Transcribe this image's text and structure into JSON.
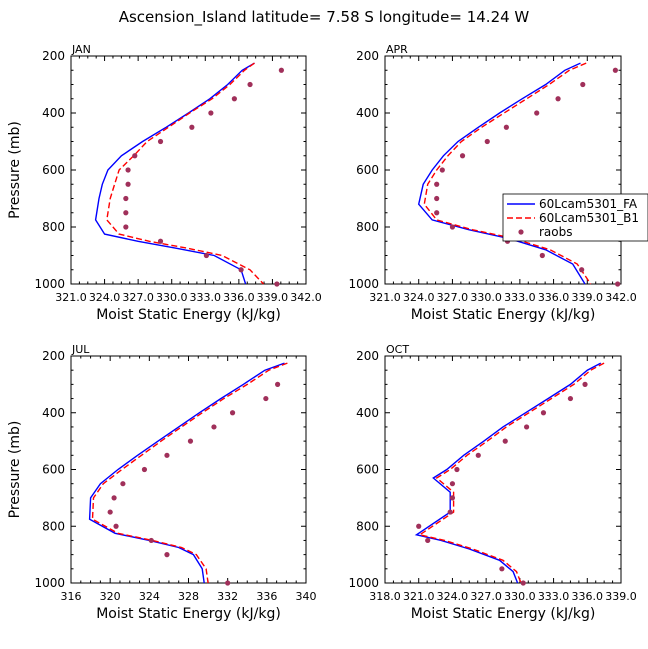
{
  "figure_title": "Ascension_Island   latitude= 7.58 S longitude= 14.24 W",
  "legend": {
    "placement": "right of APR panel",
    "entries": [
      {
        "label": "60Lcam5301_FA",
        "color": "#0000ff",
        "style": "solid"
      },
      {
        "label": "60Lcam5301_B1",
        "color": "#ff0000",
        "style": "dashed"
      },
      {
        "label": "raobs",
        "color": "#a0305a",
        "style": "dots"
      }
    ]
  },
  "chart_data": [
    {
      "type": "line",
      "panel_label": "JAN",
      "xlabel": "Moist Static Energy (kJ/kg)",
      "ylabel": "Pressure (mb)",
      "xlim": [
        321.0,
        342.0
      ],
      "xticks": [
        321.0,
        324.0,
        327.0,
        330.0,
        333.0,
        336.0,
        339.0,
        342.0
      ],
      "xtick_labels": [
        "321.0",
        "324.0",
        "327.0",
        "330.0",
        "333.0",
        "336.0",
        "339.0",
        "342.0"
      ],
      "ylim": [
        1000,
        200
      ],
      "yticks": [
        200,
        400,
        600,
        800,
        1000
      ],
      "series": [
        {
          "name": "60Lcam5301_FA",
          "points": [
            [
              337.4,
              225
            ],
            [
              336.3,
              250
            ],
            [
              335.0,
              300
            ],
            [
              333.4,
              350
            ],
            [
              331.5,
              400
            ],
            [
              329.5,
              450
            ],
            [
              327.4,
              500
            ],
            [
              325.5,
              550
            ],
            [
              324.3,
              600
            ],
            [
              323.8,
              650
            ],
            [
              323.5,
              700
            ],
            [
              323.2,
              775
            ],
            [
              324.0,
              825
            ],
            [
              327.0,
              850
            ],
            [
              330.5,
              875
            ],
            [
              333.8,
              900
            ],
            [
              336.2,
              950
            ],
            [
              336.6,
              1000
            ]
          ]
        },
        {
          "name": "60Lcam5301_B1",
          "points": [
            [
              337.4,
              225
            ],
            [
              336.5,
              250
            ],
            [
              335.2,
              300
            ],
            [
              333.6,
              350
            ],
            [
              331.6,
              400
            ],
            [
              329.7,
              450
            ],
            [
              327.8,
              500
            ],
            [
              326.6,
              550
            ],
            [
              325.3,
              600
            ],
            [
              324.9,
              650
            ],
            [
              324.5,
              700
            ],
            [
              324.2,
              775
            ],
            [
              325.3,
              825
            ],
            [
              328.0,
              850
            ],
            [
              331.5,
              875
            ],
            [
              334.5,
              900
            ],
            [
              337.0,
              950
            ],
            [
              338.2,
              1000
            ]
          ]
        }
      ],
      "points_series": {
        "name": "raobs",
        "points": [
          [
            339.8,
            250
          ],
          [
            337.0,
            300
          ],
          [
            335.6,
            350
          ],
          [
            333.5,
            400
          ],
          [
            331.8,
            450
          ],
          [
            329.0,
            500
          ],
          [
            326.7,
            550
          ],
          [
            326.1,
            600
          ],
          [
            326.1,
            650
          ],
          [
            325.9,
            700
          ],
          [
            325.9,
            750
          ],
          [
            325.9,
            800
          ],
          [
            329.0,
            850
          ],
          [
            333.1,
            900
          ],
          [
            336.2,
            950
          ],
          [
            339.4,
            1000
          ]
        ]
      }
    },
    {
      "type": "line",
      "panel_label": "APR",
      "xlabel": "Moist Static Energy (kJ/kg)",
      "ylabel": "",
      "xlim": [
        321.0,
        342.0
      ],
      "xticks": [
        321.0,
        324.0,
        327.0,
        330.0,
        333.0,
        336.0,
        339.0,
        342.0
      ],
      "xtick_labels": [
        "321.0",
        "324.0",
        "327.0",
        "330.0",
        "333.0",
        "336.0",
        "339.0",
        "342.0"
      ],
      "ylim": [
        1000,
        200
      ],
      "yticks": [
        200,
        400,
        600,
        800,
        1000
      ],
      "series": [
        {
          "name": "60Lcam5301_FA",
          "points": [
            [
              338.4,
              225
            ],
            [
              337.0,
              250
            ],
            [
              335.3,
              300
            ],
            [
              333.2,
              350
            ],
            [
              331.2,
              400
            ],
            [
              329.3,
              450
            ],
            [
              327.5,
              500
            ],
            [
              326.2,
              550
            ],
            [
              325.2,
              600
            ],
            [
              324.4,
              650
            ],
            [
              324.0,
              720
            ],
            [
              325.2,
              775
            ],
            [
              328.5,
              810
            ],
            [
              332.0,
              840
            ],
            [
              335.3,
              880
            ],
            [
              337.7,
              930
            ],
            [
              338.8,
              1000
            ]
          ]
        },
        {
          "name": "60Lcam5301_B1",
          "points": [
            [
              338.9,
              225
            ],
            [
              337.4,
              250
            ],
            [
              335.6,
              300
            ],
            [
              333.6,
              350
            ],
            [
              331.6,
              400
            ],
            [
              329.6,
              450
            ],
            [
              327.8,
              500
            ],
            [
              326.6,
              550
            ],
            [
              325.6,
              600
            ],
            [
              324.8,
              650
            ],
            [
              324.5,
              720
            ],
            [
              325.6,
              775
            ],
            [
              328.8,
              810
            ],
            [
              332.4,
              840
            ],
            [
              335.7,
              880
            ],
            [
              338.1,
              930
            ],
            [
              339.3,
              1000
            ]
          ]
        }
      ],
      "points_series": {
        "name": "raobs",
        "points": [
          [
            341.5,
            250
          ],
          [
            338.6,
            300
          ],
          [
            336.4,
            350
          ],
          [
            334.5,
            400
          ],
          [
            331.8,
            450
          ],
          [
            330.1,
            500
          ],
          [
            327.9,
            550
          ],
          [
            326.1,
            600
          ],
          [
            325.6,
            650
          ],
          [
            325.6,
            700
          ],
          [
            325.6,
            750
          ],
          [
            327.0,
            800
          ],
          [
            331.9,
            850
          ],
          [
            335.0,
            900
          ],
          [
            338.5,
            950
          ],
          [
            341.7,
            1000
          ]
        ]
      }
    },
    {
      "type": "line",
      "panel_label": "JUL",
      "xlabel": "Moist Static Energy (kJ/kg)",
      "ylabel": "Pressure (mb)",
      "xlim": [
        316,
        340
      ],
      "xticks": [
        316,
        320,
        324,
        328,
        332,
        336,
        340
      ],
      "xtick_labels": [
        "316",
        "320",
        "324",
        "328",
        "332",
        "336",
        "340"
      ],
      "ylim": [
        1000,
        200
      ],
      "yticks": [
        200,
        400,
        600,
        800,
        1000
      ],
      "series": [
        {
          "name": "60Lcam5301_FA",
          "points": [
            [
              337.8,
              225
            ],
            [
              335.8,
              250
            ],
            [
              333.6,
              300
            ],
            [
              331.3,
              350
            ],
            [
              329.1,
              400
            ],
            [
              327.0,
              450
            ],
            [
              324.9,
              500
            ],
            [
              322.8,
              550
            ],
            [
              320.8,
              600
            ],
            [
              319.0,
              650
            ],
            [
              318.0,
              700
            ],
            [
              317.9,
              775
            ],
            [
              320.5,
              825
            ],
            [
              324.0,
              850
            ],
            [
              327.0,
              875
            ],
            [
              328.5,
              900
            ],
            [
              329.4,
              950
            ],
            [
              329.6,
              1000
            ]
          ]
        },
        {
          "name": "60Lcam5301_B1",
          "points": [
            [
              338.1,
              225
            ],
            [
              336.2,
              250
            ],
            [
              334.0,
              300
            ],
            [
              331.6,
              350
            ],
            [
              329.4,
              400
            ],
            [
              327.3,
              450
            ],
            [
              325.2,
              500
            ],
            [
              323.2,
              550
            ],
            [
              321.2,
              600
            ],
            [
              319.3,
              650
            ],
            [
              318.3,
              700
            ],
            [
              318.2,
              775
            ],
            [
              320.8,
              825
            ],
            [
              324.3,
              850
            ],
            [
              327.3,
              875
            ],
            [
              328.8,
              900
            ],
            [
              329.8,
              950
            ],
            [
              330.0,
              1000
            ]
          ]
        }
      ],
      "points_series": {
        "name": "raobs",
        "points": [
          [
            337.1,
            300
          ],
          [
            335.9,
            350
          ],
          [
            332.5,
            400
          ],
          [
            330.6,
            450
          ],
          [
            328.2,
            500
          ],
          [
            325.8,
            550
          ],
          [
            323.5,
            600
          ],
          [
            321.3,
            650
          ],
          [
            320.4,
            700
          ],
          [
            320.0,
            750
          ],
          [
            320.6,
            800
          ],
          [
            324.2,
            850
          ],
          [
            325.8,
            900
          ],
          [
            332.0,
            1000
          ]
        ]
      }
    },
    {
      "type": "line",
      "panel_label": "OCT",
      "xlabel": "Moist Static Energy (kJ/kg)",
      "ylabel": "",
      "xlim": [
        318.0,
        339.0
      ],
      "xticks": [
        318.0,
        321.0,
        324.0,
        327.0,
        330.0,
        333.0,
        336.0,
        339.0
      ],
      "xtick_labels": [
        "318.0",
        "321.0",
        "324.0",
        "327.0",
        "330.0",
        "333.0",
        "336.0",
        "339.0"
      ],
      "ylim": [
        1000,
        200
      ],
      "yticks": [
        200,
        400,
        600,
        800,
        1000
      ],
      "series": [
        {
          "name": "60Lcam5301_FA",
          "points": [
            [
              337.2,
              225
            ],
            [
              336.0,
              250
            ],
            [
              334.5,
              300
            ],
            [
              332.5,
              350
            ],
            [
              330.5,
              400
            ],
            [
              328.5,
              450
            ],
            [
              326.8,
              500
            ],
            [
              325.0,
              550
            ],
            [
              323.5,
              600
            ],
            [
              322.3,
              630
            ],
            [
              323.8,
              680
            ],
            [
              323.8,
              720
            ],
            [
              323.8,
              750
            ],
            [
              320.8,
              830
            ],
            [
              323.0,
              850
            ],
            [
              325.5,
              880
            ],
            [
              328.2,
              920
            ],
            [
              329.4,
              960
            ],
            [
              329.8,
              1000
            ]
          ]
        },
        {
          "name": "60Lcam5301_B1",
          "points": [
            [
              337.5,
              225
            ],
            [
              336.3,
              250
            ],
            [
              334.8,
              300
            ],
            [
              332.8,
              350
            ],
            [
              330.8,
              400
            ],
            [
              328.8,
              450
            ],
            [
              327.1,
              500
            ],
            [
              325.3,
              550
            ],
            [
              323.8,
              600
            ],
            [
              322.6,
              630
            ],
            [
              324.1,
              680
            ],
            [
              324.1,
              720
            ],
            [
              324.1,
              750
            ],
            [
              321.1,
              830
            ],
            [
              323.3,
              850
            ],
            [
              325.8,
              880
            ],
            [
              328.5,
              920
            ],
            [
              329.7,
              960
            ],
            [
              330.1,
              1000
            ]
          ]
        }
      ],
      "points_series": {
        "name": "raobs",
        "points": [
          [
            335.8,
            300
          ],
          [
            334.5,
            350
          ],
          [
            332.1,
            400
          ],
          [
            330.6,
            450
          ],
          [
            328.7,
            500
          ],
          [
            326.3,
            550
          ],
          [
            324.4,
            600
          ],
          [
            324.0,
            650
          ],
          [
            324.0,
            700
          ],
          [
            323.8,
            750
          ],
          [
            321.0,
            800
          ],
          [
            321.8,
            850
          ],
          [
            328.4,
            950
          ],
          [
            330.3,
            1000
          ]
        ]
      }
    }
  ]
}
